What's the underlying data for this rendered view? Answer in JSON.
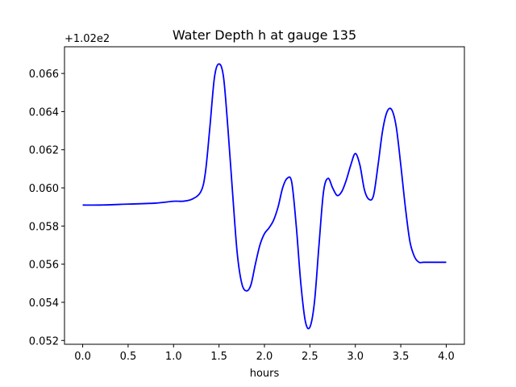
{
  "chart_data": {
    "type": "line",
    "title": "Water Depth h at gauge 135",
    "xlabel": "hours",
    "ylabel": "",
    "offset_label": "+1.02e2",
    "xlim": [
      -0.2,
      4.2
    ],
    "ylim": [
      0.0518,
      0.0674
    ],
    "xticks": [
      0.0,
      0.5,
      1.0,
      1.5,
      2.0,
      2.5,
      3.0,
      3.5,
      4.0
    ],
    "xtick_labels": [
      "0.0",
      "0.5",
      "1.0",
      "1.5",
      "2.0",
      "2.5",
      "3.0",
      "3.5",
      "4.0"
    ],
    "yticks": [
      0.052,
      0.054,
      0.056,
      0.058,
      0.06,
      0.062,
      0.064,
      0.066
    ],
    "ytick_labels": [
      "0.052",
      "0.054",
      "0.056",
      "0.058",
      "0.060",
      "0.062",
      "0.064",
      "0.066"
    ],
    "grid": false,
    "series": [
      {
        "color": "#0000ff",
        "x": [
          0.0,
          0.2,
          0.5,
          0.8,
          1.0,
          1.1,
          1.2,
          1.3,
          1.35,
          1.4,
          1.45,
          1.5,
          1.55,
          1.6,
          1.65,
          1.7,
          1.75,
          1.8,
          1.85,
          1.9,
          1.95,
          2.0,
          2.05,
          2.1,
          2.15,
          2.2,
          2.25,
          2.3,
          2.35,
          2.4,
          2.45,
          2.5,
          2.55,
          2.6,
          2.65,
          2.7,
          2.75,
          2.8,
          2.85,
          2.9,
          2.95,
          3.0,
          3.05,
          3.1,
          3.15,
          3.2,
          3.25,
          3.3,
          3.35,
          3.4,
          3.45,
          3.5,
          3.55,
          3.6,
          3.65,
          3.7,
          3.75,
          3.8,
          3.85,
          3.9,
          3.95,
          4.0
        ],
        "y": [
          0.0591,
          0.0591,
          0.05915,
          0.0592,
          0.0593,
          0.0593,
          0.0594,
          0.0598,
          0.0608,
          0.0632,
          0.0658,
          0.0665,
          0.0658,
          0.063,
          0.0597,
          0.0566,
          0.055,
          0.0546,
          0.0549,
          0.056,
          0.057,
          0.0576,
          0.0579,
          0.0583,
          0.059,
          0.06,
          0.0605,
          0.0603,
          0.058,
          0.055,
          0.053,
          0.0527,
          0.054,
          0.057,
          0.0598,
          0.0605,
          0.06,
          0.0596,
          0.0598,
          0.0604,
          0.0612,
          0.0618,
          0.0612,
          0.0599,
          0.0594,
          0.0596,
          0.0612,
          0.063,
          0.064,
          0.0641,
          0.0632,
          0.0612,
          0.059,
          0.0572,
          0.0564,
          0.0561,
          0.0561,
          0.0561,
          0.0561,
          0.0561,
          0.0561,
          0.0561
        ]
      }
    ]
  }
}
